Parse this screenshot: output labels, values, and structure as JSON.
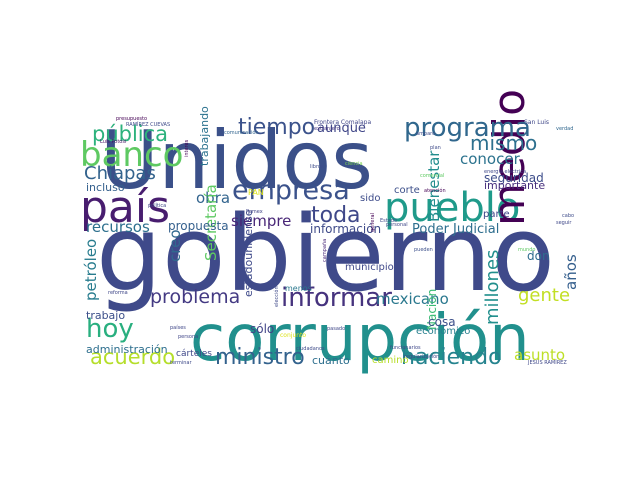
{
  "words": [
    {
      "text": "gobierno",
      "color": "#3f4a8a"
    },
    {
      "text": "Unidos",
      "color": "#3b5089"
    },
    {
      "text": "corrupción",
      "color": "#21908d"
    },
    {
      "text": "país",
      "color": "#481d6f"
    },
    {
      "text": "pueblo",
      "color": "#1f9a8a"
    },
    {
      "text": "medio",
      "color": "#440154"
    },
    {
      "text": "banco",
      "color": "#5ec962"
    },
    {
      "text": "empresa",
      "color": "#3b528b"
    },
    {
      "text": "programa",
      "color": "#30678d"
    },
    {
      "text": "informar",
      "color": "#46337e"
    },
    {
      "text": "hoy",
      "color": "#29af7f"
    },
    {
      "text": "problema",
      "color": "#443a83"
    },
    {
      "text": "ministro",
      "color": "#33628d"
    },
    {
      "text": "haciendo",
      "color": "#25838e"
    },
    {
      "text": "pública",
      "color": "#2db27d"
    },
    {
      "text": "tiempo",
      "color": "#3b528b"
    },
    {
      "text": "acuerdo",
      "color": "#b5de2b"
    },
    {
      "text": "Chiapas",
      "color": "#33638d"
    },
    {
      "text": "toda",
      "color": "#3f4889"
    },
    {
      "text": "mismo",
      "color": "#2d708e"
    },
    {
      "text": "gente",
      "color": "#c2df23"
    },
    {
      "text": "conocer",
      "color": "#2c738e"
    },
    {
      "text": "obra",
      "color": "#32648e"
    },
    {
      "text": "siempre",
      "color": "#482677"
    },
    {
      "text": "aunque",
      "color": "#404688"
    },
    {
      "text": "recursos",
      "color": "#2d708e"
    },
    {
      "text": "mexicano",
      "color": "#2a788e"
    },
    {
      "text": "millones",
      "color": "#218f8d"
    },
    {
      "text": "años",
      "color": "#355f8d"
    },
    {
      "text": "Poder Judicial",
      "color": "#2e6e8e"
    },
    {
      "text": "asunto",
      "color": "#bddf26"
    },
    {
      "text": "Bienestar",
      "color": "#228d8d"
    },
    {
      "text": "Secretaría",
      "color": "#5ec962"
    },
    {
      "text": "petróleo",
      "color": "#287c8e"
    },
    {
      "text": "creo",
      "color": "#31688e"
    },
    {
      "text": "información",
      "color": "#3e4a89"
    },
    {
      "text": "seguridad",
      "color": "#3d4d8a"
    },
    {
      "text": "importante",
      "color": "#472f7d"
    },
    {
      "text": "trabajo",
      "color": "#3c4f8a"
    },
    {
      "text": "administración",
      "color": "#2e6f8e"
    },
    {
      "text": "incluso",
      "color": "#35608d"
    },
    {
      "text": "sólo",
      "color": "#414487"
    },
    {
      "text": "propuesta",
      "color": "#35608d"
    },
    {
      "text": "estadounidense",
      "color": "#3e4989"
    },
    {
      "text": "Nación",
      "color": "#3bbb75"
    },
    {
      "text": "don",
      "color": "#2f6c8e"
    },
    {
      "text": "cosa",
      "color": "#3c4f8a"
    },
    {
      "text": "municipio",
      "color": "#3f4889"
    },
    {
      "text": "trabajando",
      "color": "#2c728e"
    },
    {
      "text": "corte",
      "color": "#3c4f8a"
    },
    {
      "text": "parte",
      "color": "#3f4788"
    },
    {
      "text": "sido",
      "color": "#3e4c8a"
    },
    {
      "text": "cuánto",
      "color": "#2e6f8e"
    },
    {
      "text": "camino",
      "color": "#b8de29"
    },
    {
      "text": "económico",
      "color": "#277f8e"
    },
    {
      "text": "cárteles",
      "color": "#3f4889"
    },
    {
      "text": "Frontera Comalapa",
      "color": "#404688"
    },
    {
      "text": "San Luis",
      "color": "#3f4788"
    },
    {
      "text": "presupuesto",
      "color": "#440154"
    },
    {
      "text": "RAMÍREZ CUEVAS",
      "color": "#3e4a89"
    },
    {
      "text": "Luis Potosí",
      "color": "#481467"
    },
    {
      "text": "comunicación",
      "color": "#32658e"
    },
    {
      "text": "extranjero",
      "color": "#453781"
    },
    {
      "text": "amparo",
      "color": "#3e4c8a"
    },
    {
      "text": "verdad",
      "color": "#31688e"
    },
    {
      "text": "libros",
      "color": "#3e4c8a"
    },
    {
      "text": "ciencia",
      "color": "#7ad151"
    },
    {
      "text": "plan",
      "color": "#3e4a89"
    },
    {
      "text": "comercial",
      "color": "#5ec962"
    },
    {
      "text": "energía eléctrica",
      "color": "#3f4889"
    },
    {
      "text": "atención",
      "color": "#440154"
    },
    {
      "text": "PAN",
      "color": "#dce319"
    },
    {
      "text": "menos",
      "color": "#2a788e"
    },
    {
      "text": "política",
      "color": "#3f4788"
    },
    {
      "text": "Pemex",
      "color": "#414487"
    },
    {
      "text": "personal",
      "color": "#3f4788"
    },
    {
      "text": "pueden",
      "color": "#3c4f8a"
    },
    {
      "text": "campaña",
      "color": "#482878"
    },
    {
      "text": "elección",
      "color": "#3e4989"
    },
    {
      "text": "reforma",
      "color": "#3f4788"
    },
    {
      "text": "países",
      "color": "#3f4788"
    },
    {
      "text": "conjunto",
      "color": "#dce319"
    },
    {
      "text": "pasado",
      "color": "#3f4788"
    },
    {
      "text": "persona",
      "color": "#404688"
    },
    {
      "text": "ciudadanos",
      "color": "#3e4a89"
    },
    {
      "text": "funcionarios",
      "color": "#3f4889"
    },
    {
      "text": "regularización",
      "color": "#3f4889"
    },
    {
      "text": "terminar",
      "color": "#3e4989"
    },
    {
      "text": "JESÚS RAMÍREZ",
      "color": "#3f4889"
    },
    {
      "text": "general",
      "color": "#440154"
    },
    {
      "text": "mundo",
      "color": "#5ec962"
    },
    {
      "text": "cabo",
      "color": "#3e4c8a"
    },
    {
      "text": "seguir",
      "color": "#3f4788"
    },
    {
      "text": "Estado",
      "color": "#3e4a89"
    },
    {
      "text": "interés",
      "color": "#440154"
    }
  ]
}
